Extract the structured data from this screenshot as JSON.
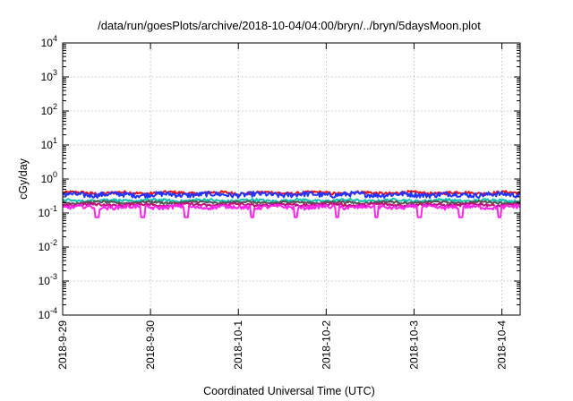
{
  "chart_data": {
    "type": "line",
    "title": "/data/run/goesPlots/archive/2018-10-04/04:00/bryn/../bryn/5daysMoon.plot",
    "xlabel": "Coordinated Universal Time (UTC)",
    "ylabel": "cGy/day",
    "yscale": "log",
    "ylim": [
      0.0001,
      10000
    ],
    "yticks": [
      {
        "value": 10000,
        "base": "10",
        "exp": "4"
      },
      {
        "value": 1000,
        "base": "10",
        "exp": "3"
      },
      {
        "value": 100,
        "base": "10",
        "exp": "2"
      },
      {
        "value": 10,
        "base": "10",
        "exp": "1"
      },
      {
        "value": 1,
        "base": "10",
        "exp": "0"
      },
      {
        "value": 0.1,
        "base": "10",
        "exp": "-1"
      },
      {
        "value": 0.01,
        "base": "10",
        "exp": "-2"
      },
      {
        "value": 0.001,
        "base": "10",
        "exp": "-3"
      },
      {
        "value": 0.0001,
        "base": "10",
        "exp": "-4"
      }
    ],
    "xlim": [
      "2018-09-29",
      "2018-10-04 05:00"
    ],
    "xticks": [
      {
        "value": "2018-09-29",
        "label": "2018-9-29"
      },
      {
        "value": "2018-09-30",
        "label": "2018-9-30"
      },
      {
        "value": "2018-10-01",
        "label": "2018-10-1"
      },
      {
        "value": "2018-10-02",
        "label": "2018-10-2"
      },
      {
        "value": "2018-10-03",
        "label": "2018-10-3"
      },
      {
        "value": "2018-10-04",
        "label": "2018-10-4"
      }
    ],
    "grid": true,
    "legend": "none",
    "series": [
      {
        "color": "#ee1111",
        "level": 0.39,
        "noise": 0.04,
        "dips": false
      },
      {
        "color": "#2233ff",
        "level": 0.35,
        "noise": 0.06,
        "dips": false
      },
      {
        "color": "#11c4b0",
        "level": 0.235,
        "noise": 0.02,
        "dips": false
      },
      {
        "color": "#555555",
        "level": 0.205,
        "noise": 0.015,
        "dips": false
      },
      {
        "color": "#bb1177",
        "level": 0.175,
        "noise": 0.015,
        "dips": false
      },
      {
        "color": "#ff22ee",
        "level": 0.15,
        "noise": 0.02,
        "dips": true
      }
    ]
  }
}
